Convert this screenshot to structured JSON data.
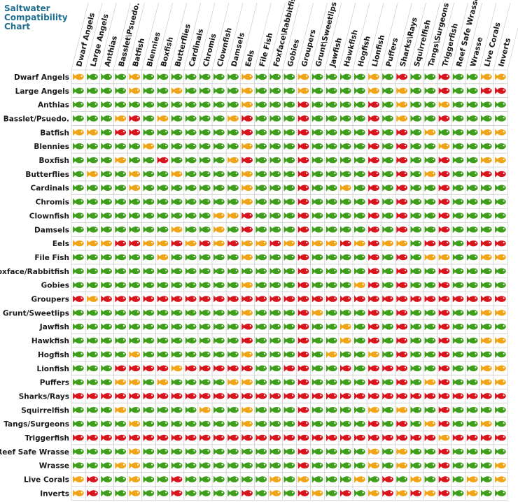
{
  "chart_data": {
    "type": "heatmap",
    "title": "Saltwater\nCompatibility\nChart",
    "legend": {
      "G": "#3f9e1b",
      "Y": "#f0a418",
      "R": "#d8151d"
    },
    "columns": [
      "Dwarf Angels",
      "Large Angels",
      "Anthias",
      "Basslet\\Psuedo.",
      "Batfish",
      "Blennies",
      "Boxfish",
      "Butterflies",
      "Cardinals",
      "Chromis",
      "Clownfish",
      "Damsels",
      "Eels",
      "File Fish",
      "Foxface\\Rabbitfish",
      "Gobies",
      "Groupers",
      "Grunt\\Sweetlips",
      "Jawfish",
      "Hawkfish",
      "Hogfish",
      "Lionfish",
      "Puffers",
      "Sharks\\Rays",
      "Squirrelfish",
      "Tangs\\Surgeons",
      "Triggerfish",
      "Reef Safe Wrasse",
      "Wrasse",
      "Live Corals",
      "Inverts"
    ],
    "rows": [
      "Dwarf Angels",
      "Large Angels",
      "Anthias",
      "Basslet/Psuedo.",
      "Batfish",
      "Blennies",
      "Boxfish",
      "Butterflies",
      "Cardinals",
      "Chromis",
      "Clownfish",
      "Damsels",
      "Eels",
      "File Fish",
      "Foxface/Rabbitfish",
      "Gobies",
      "Groupers",
      "Grunt/Sweetlips",
      "Jawfish",
      "Hawkfish",
      "Hogfish",
      "Lionfish",
      "Puffers",
      "Sharks/Rays",
      "Squirrelfish",
      "Tangs/Surgeons",
      "Triggerfish",
      "Reef Safe Wrasse",
      "Wrasse",
      "Live Corals",
      "Inverts"
    ],
    "values": [
      "YGGGYGGGGGGGYGGGYGGGGYGRGGRGGYY",
      "GGGGYGGYGGGGYGGGYGGGGYGYGGRGGRR",
      "GGGGGGGGGGGGYGGGRGGGGRGYGGYGGGG",
      "GGGYRGYGGGGYRGGGRGGGGRGYGGRGGGG",
      "YYGRRGGGGGGGRGGGRGGGGRGRGYGGGYY",
      "GGGGGYGGGGGGYGGGRGGGGRGRGGYGGGG",
      "GGGYGGRGGGGYRGGGRGGGGRGRGGRGGYY",
      "GYGGYGGYGGGGYGGGRGGGGRGRGYRGGRR",
      "GGGGYGGGGGGGYGGGRGGYGRGRGGRGGGG",
      "GGGGGGGGGGGGYGGGRGGGGRGRGGRGGGG",
      "GGGGGGGGGGYYRGGGRGGGGRGRGGRGGGG",
      "GGGGGGGYGGYGRGGGRGGGGRGRGGRGGGG",
      "YYYRRYYRYRYRYYRYRYYRYRYYGRRGRRR",
      "GGGGGGYGGGGGYGGGRGGGGRGRGYYGGYY",
      "GGGGGGGGGGGGGGGGRGGGGRGRGGRGGGG",
      "GGGGGGGGGGGGYGGGRGGGYRGRGGRGGGG",
      "RYRRRRRRRRRRRRRRRRRRRRRRRRRRRRR",
      "GGGGGGGGGGGGYGGGRYGGGRGRGGRGGYY",
      "GGGGGGGGGGGGRGGGRGGYGRGRGGRGGGG",
      "GGGGGGGGGGGGRGGGRGGYGRGRGGRGGYY",
      "GGGGYGGGGGGGYGGGRGYGGYGRGGRGGGG",
      "GGGRRRRYRRRRRGGRRGGRGRRRGGRGGYY",
      "GGGYYGYGGGGYYGGGRGGGGRGRGYRGGYY",
      "RRRRRRRRRRRRRRRRRRRRRRRRRRRRRRR",
      "GGGYGGGGGYGGYGGGRGGGGYGYGGRGGGG",
      "GGGGYGGGGGGGYGGGRGGGGRGRGYRGGYG",
      "RRRRRRRRRRRRRRRRRRRRRRRRRRYRRRR",
      "GGGGYGGGGGGGGGGGRGGGGYGYGGRGGGG",
      "GGGYYGGGGGGGGGGGRGGGGYGYGGRGGGY",
      "YRGGYGGRGGGGGGYGYGGGYGRGYGRGYGY",
      "YRGGYGGRGGGGRGYGRYGRGYRYRYRGYGG"
    ]
  }
}
